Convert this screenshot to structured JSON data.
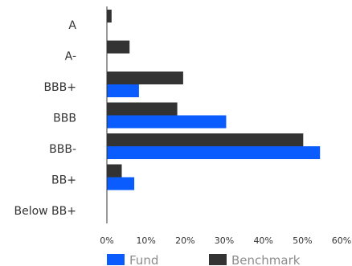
{
  "chart_data": {
    "type": "bar",
    "orientation": "horizontal",
    "categories": [
      "A",
      "A-",
      "BBB+",
      "BBB",
      "BBB-",
      "BB+",
      "Below BB+"
    ],
    "series": [
      {
        "name": "Fund",
        "color": "#0a5cff",
        "values": [
          0,
          0,
          8.2,
          30.5,
          54.5,
          7.0,
          0
        ]
      },
      {
        "name": "Benchmark",
        "color": "#333333",
        "values": [
          1.2,
          5.8,
          19.5,
          18.0,
          50.2,
          3.8,
          0
        ]
      }
    ],
    "xlim": [
      0,
      60
    ],
    "xticks": [
      "0%",
      "10%",
      "20%",
      "30%",
      "40%",
      "50%",
      "60%"
    ],
    "grid": false,
    "legend_position": "bottom"
  }
}
